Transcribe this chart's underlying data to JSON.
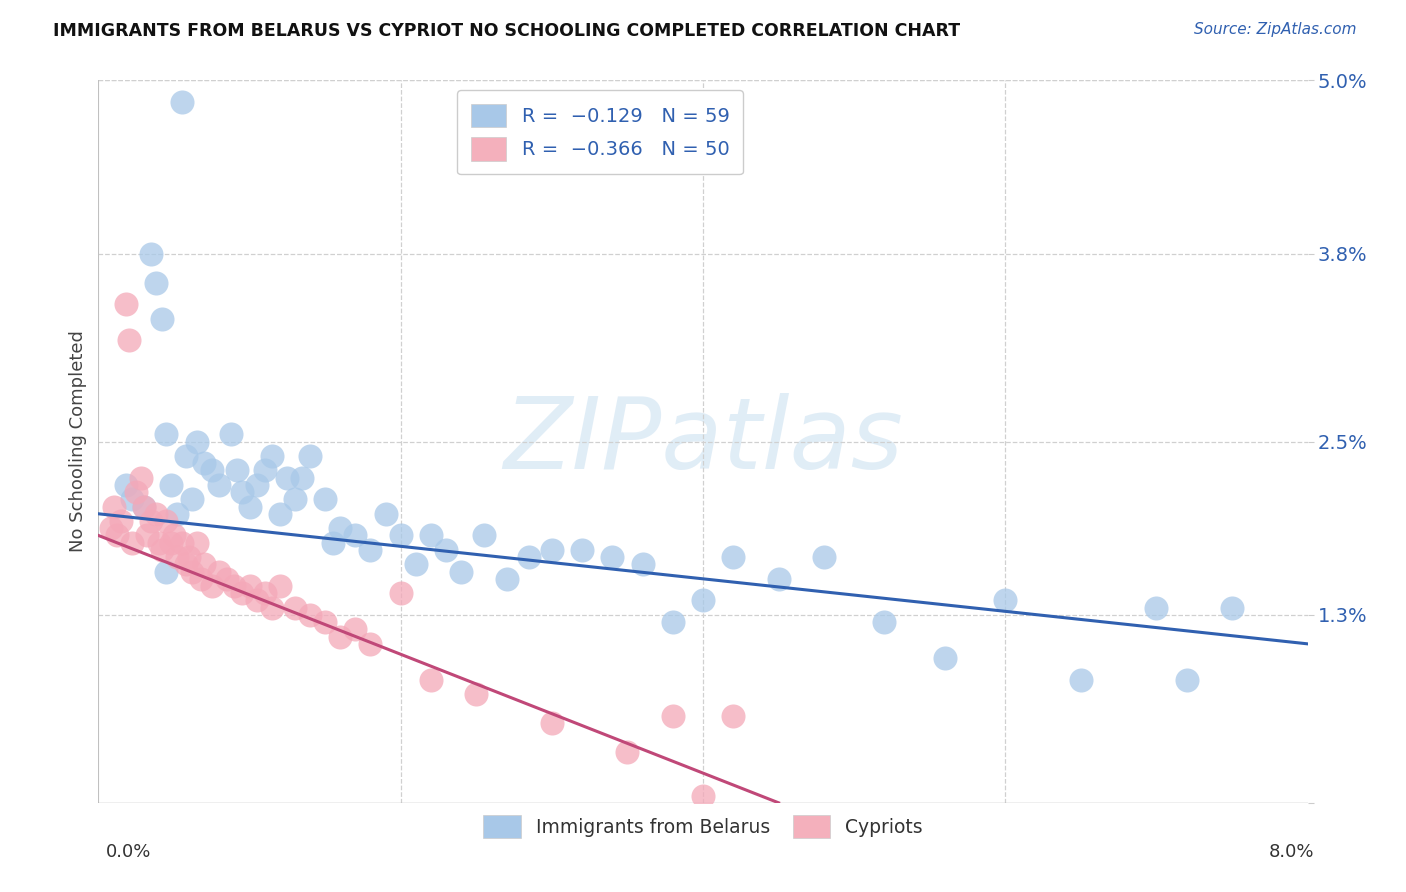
{
  "title": "IMMIGRANTS FROM BELARUS VS CYPRIOT NO SCHOOLING COMPLETED CORRELATION CHART",
  "source": "Source: ZipAtlas.com",
  "ylabel": "No Schooling Completed",
  "xmin": 0.0,
  "xmax": 8.0,
  "ymin": 0.0,
  "ymax": 5.0,
  "yticks": [
    0.0,
    1.3,
    2.5,
    3.8,
    5.0
  ],
  "ytick_labels": [
    "",
    "1.3%",
    "2.5%",
    "3.8%",
    "5.0%"
  ],
  "blue_color": "#a8c8e8",
  "pink_color": "#f4a8b8",
  "blue_line_color": "#3060b0",
  "pink_line_color": "#c04878",
  "blue_legend_color": "#a8c8e8",
  "pink_legend_color": "#f4b0bc",
  "legend_text_color": "#3060b0",
  "watermark": "ZIPatlas",
  "blue_x": [
    0.55,
    0.18,
    0.22,
    0.3,
    0.35,
    0.38,
    0.42,
    0.45,
    0.48,
    0.52,
    0.58,
    0.62,
    0.65,
    0.7,
    0.75,
    0.8,
    0.88,
    0.92,
    0.95,
    1.0,
    1.05,
    1.1,
    1.15,
    1.2,
    1.25,
    1.3,
    1.35,
    1.4,
    1.5,
    1.55,
    1.6,
    1.7,
    1.8,
    1.9,
    2.0,
    2.1,
    2.2,
    2.3,
    2.4,
    2.55,
    2.7,
    2.85,
    3.0,
    3.2,
    3.4,
    3.6,
    3.8,
    4.0,
    4.2,
    4.5,
    4.8,
    5.2,
    5.6,
    6.0,
    6.5,
    7.0,
    7.2,
    7.5,
    0.45
  ],
  "blue_y": [
    4.85,
    2.2,
    2.1,
    2.05,
    3.8,
    3.6,
    3.35,
    2.55,
    2.2,
    2.0,
    2.4,
    2.1,
    2.5,
    2.35,
    2.3,
    2.2,
    2.55,
    2.3,
    2.15,
    2.05,
    2.2,
    2.3,
    2.4,
    2.0,
    2.25,
    2.1,
    2.25,
    2.4,
    2.1,
    1.8,
    1.9,
    1.85,
    1.75,
    2.0,
    1.85,
    1.65,
    1.85,
    1.75,
    1.6,
    1.85,
    1.55,
    1.7,
    1.75,
    1.75,
    1.7,
    1.65,
    1.25,
    1.4,
    1.7,
    1.55,
    1.7,
    1.25,
    1.0,
    1.4,
    0.85,
    1.35,
    0.85,
    1.35,
    1.6
  ],
  "pink_x": [
    0.08,
    0.1,
    0.12,
    0.15,
    0.18,
    0.2,
    0.22,
    0.25,
    0.28,
    0.3,
    0.32,
    0.35,
    0.38,
    0.4,
    0.42,
    0.45,
    0.48,
    0.5,
    0.52,
    0.55,
    0.58,
    0.6,
    0.62,
    0.65,
    0.68,
    0.7,
    0.75,
    0.8,
    0.85,
    0.9,
    0.95,
    1.0,
    1.05,
    1.1,
    1.15,
    1.2,
    1.3,
    1.4,
    1.5,
    1.6,
    1.7,
    1.8,
    2.0,
    2.2,
    2.5,
    3.0,
    3.5,
    3.8,
    4.0,
    4.2
  ],
  "pink_y": [
    1.9,
    2.05,
    1.85,
    1.95,
    3.45,
    3.2,
    1.8,
    2.15,
    2.25,
    2.05,
    1.85,
    1.95,
    2.0,
    1.8,
    1.75,
    1.95,
    1.8,
    1.85,
    1.7,
    1.8,
    1.65,
    1.7,
    1.6,
    1.8,
    1.55,
    1.65,
    1.5,
    1.6,
    1.55,
    1.5,
    1.45,
    1.5,
    1.4,
    1.45,
    1.35,
    1.5,
    1.35,
    1.3,
    1.25,
    1.15,
    1.2,
    1.1,
    1.45,
    0.85,
    0.75,
    0.55,
    0.35,
    0.6,
    0.05,
    0.6
  ],
  "blue_line_x0": 0.0,
  "blue_line_x1": 8.0,
  "blue_line_y0": 2.0,
  "blue_line_y1": 1.1,
  "pink_line_x0": 0.0,
  "pink_line_x1": 4.5,
  "pink_line_y0": 1.85,
  "pink_line_y1": 0.0
}
